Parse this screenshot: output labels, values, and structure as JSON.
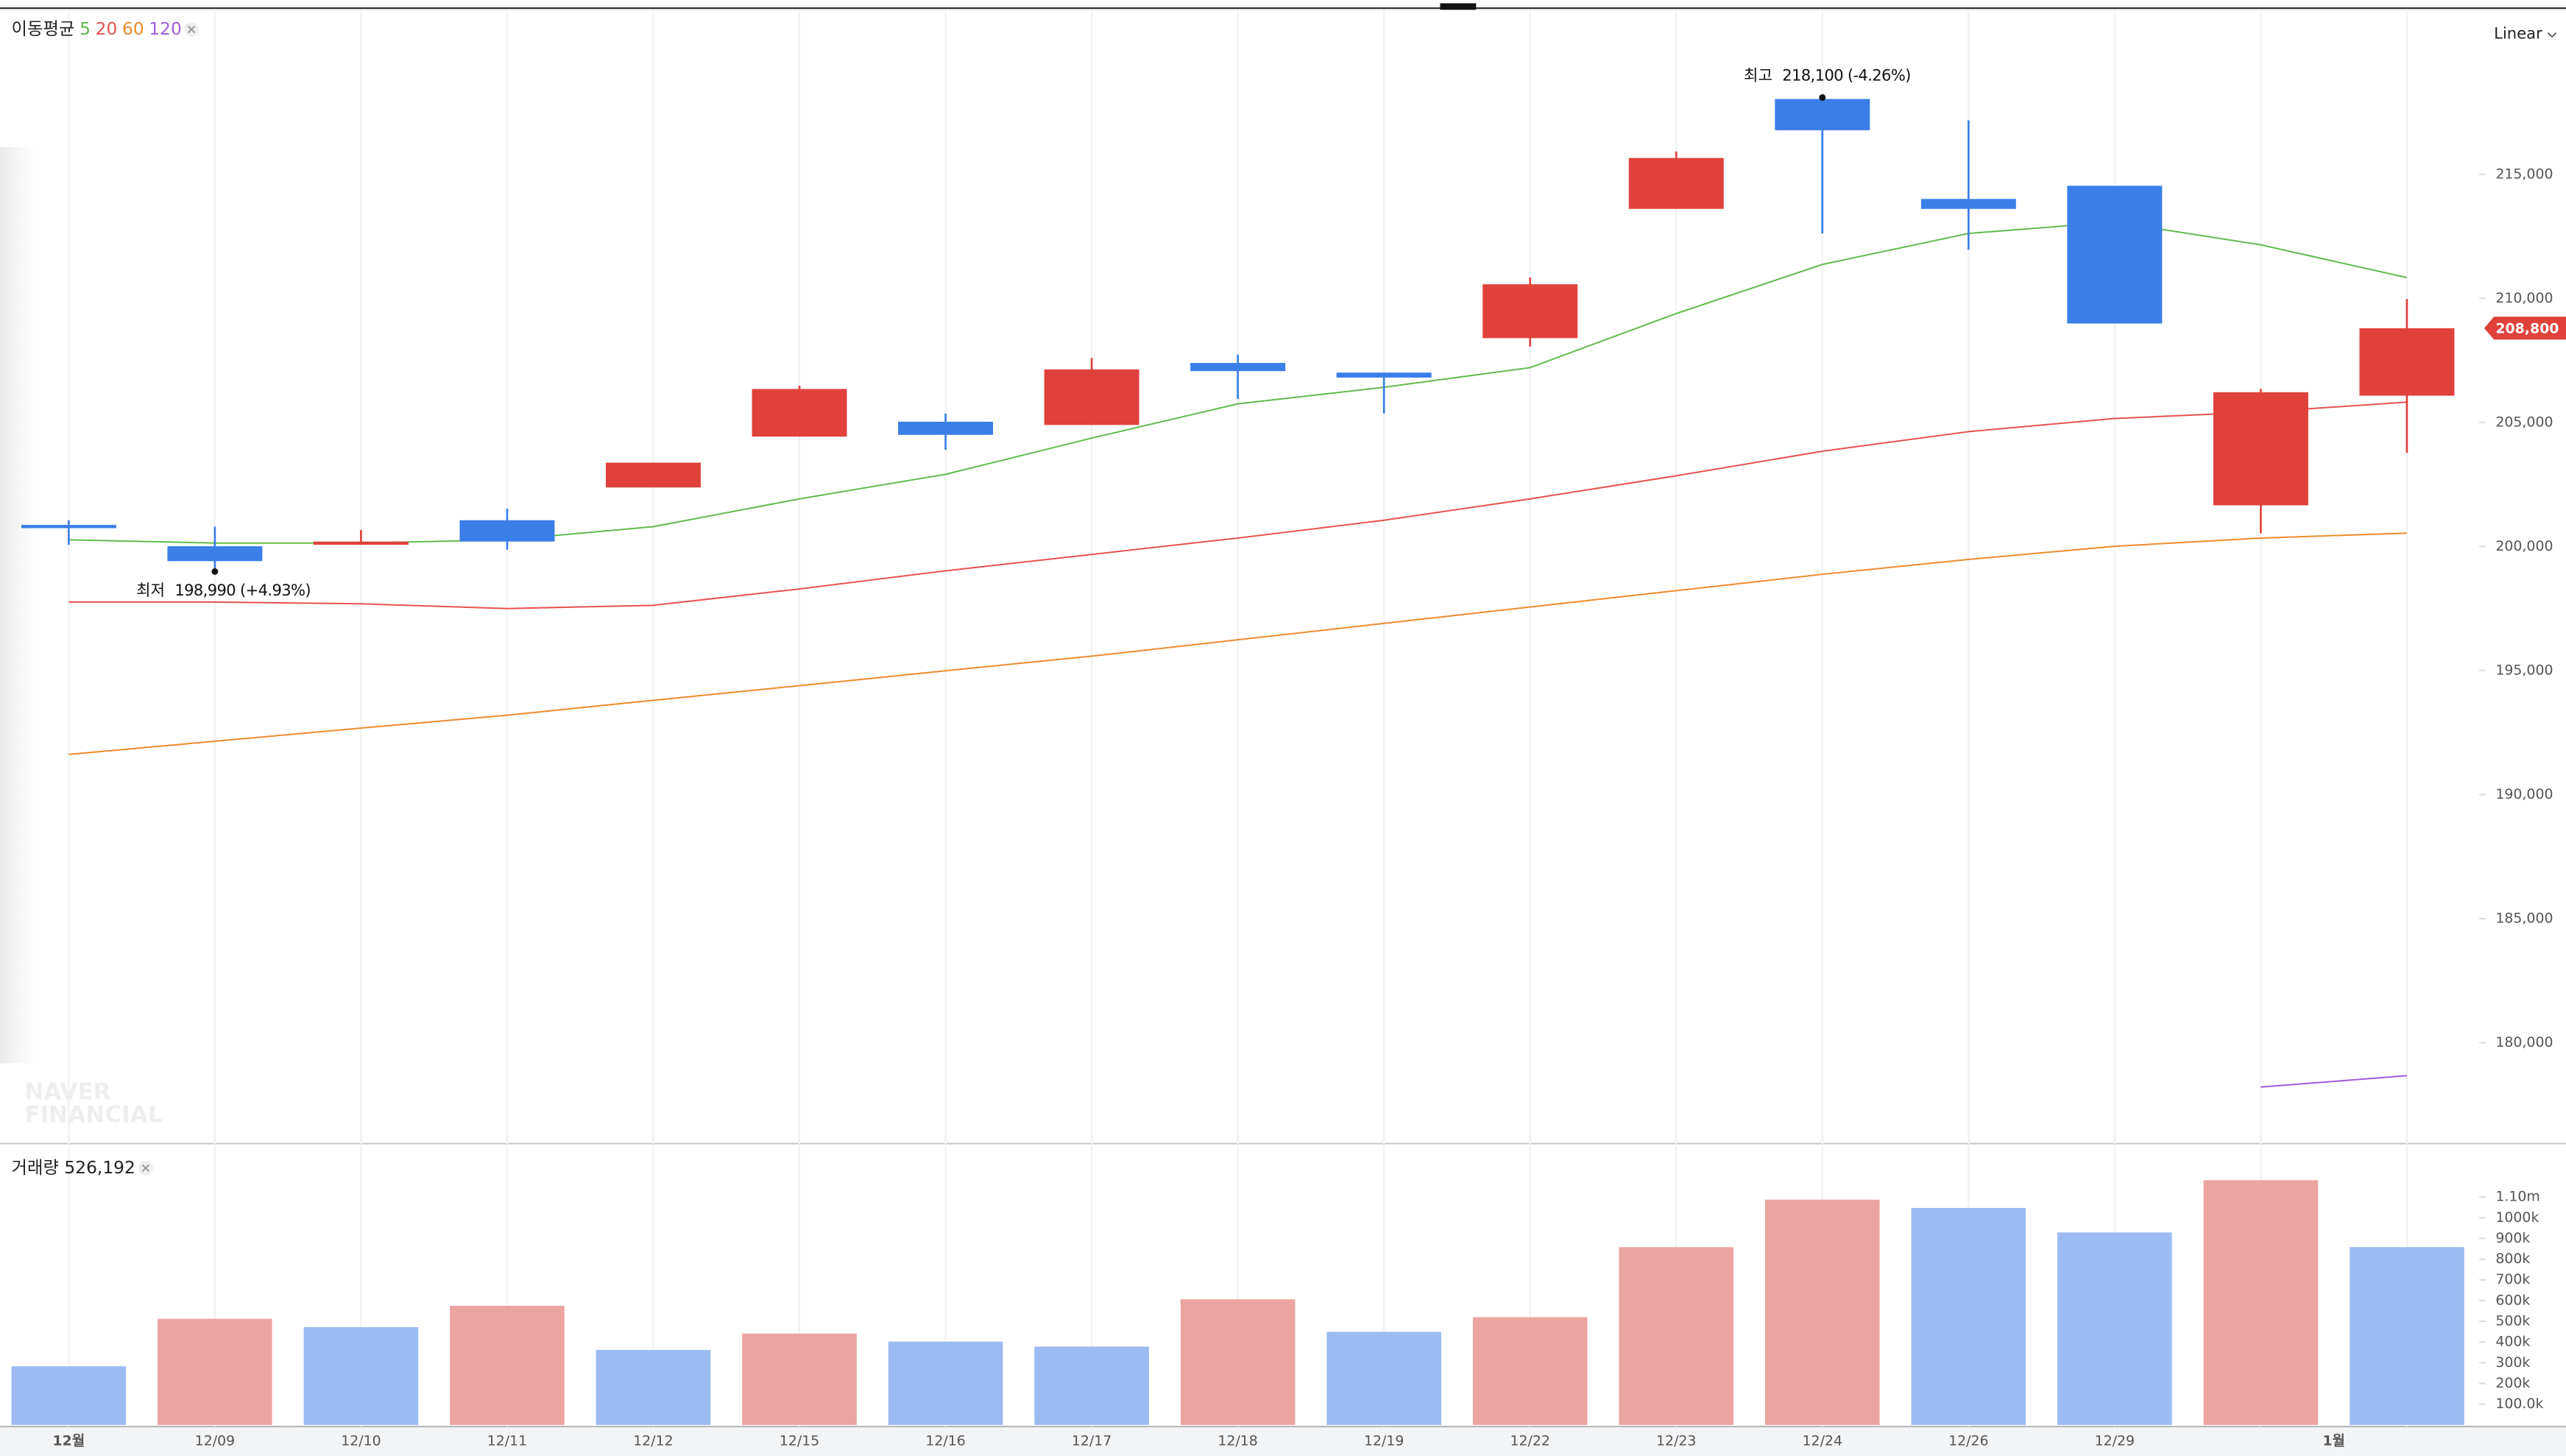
{
  "chart_data": [
    {
      "type": "candlestick",
      "legend_title": "이동평균",
      "scale_label": "Linear",
      "watermark": [
        "NAVER",
        "FINANCIAL"
      ],
      "categories": [
        "12월",
        "12/09",
        "12/10",
        "12/11",
        "12/12",
        "12/15",
        "12/16",
        "12/17",
        "12/18",
        "12/19",
        "12/22",
        "12/23",
        "12/24",
        "12/26",
        "12/29",
        null,
        null
      ],
      "month_label": "1월",
      "open": [
        200870,
        200010,
        200070,
        201060,
        202380,
        204430,
        205030,
        204900,
        207400,
        207010,
        208400,
        213610,
        218040,
        214010,
        214540,
        201660,
        206080
      ],
      "high": [
        201060,
        200800,
        200670,
        201530,
        203380,
        206480,
        205360,
        207600,
        207730,
        207010,
        210840,
        215920,
        218100,
        217180,
        214540,
        206350,
        209980
      ],
      "low": [
        200070,
        198990,
        200070,
        199870,
        202380,
        204430,
        203900,
        204900,
        205950,
        205360,
        208060,
        213610,
        212620,
        211960,
        208990,
        200530,
        203770
      ],
      "close": [
        200740,
        199410,
        200200,
        200200,
        203380,
        206350,
        204500,
        207140,
        207070,
        206810,
        210570,
        215660,
        216780,
        213610,
        208990,
        206220,
        208800
      ],
      "up_color": "#e0413b",
      "down_color": "#3a7ee8",
      "moving_averages": [
        {
          "name": "5",
          "color": "#62bb4e",
          "values": [
            200270,
            200140,
            200140,
            200270,
            200800,
            201920,
            202910,
            204370,
            205750,
            206420,
            207210,
            209390,
            211370,
            212620,
            213080,
            212160,
            210840
          ]
        },
        {
          "name": "20",
          "color": "#e65252",
          "values": [
            197760,
            197760,
            197690,
            197500,
            197630,
            198290,
            199020,
            199680,
            200340,
            201060,
            201920,
            202850,
            203840,
            204630,
            205160,
            205420,
            205820
          ]
        },
        {
          "name": "60",
          "color": "#f08a2c",
          "values": [
            191620,
            192150,
            192680,
            193200,
            193800,
            194390,
            194990,
            195580,
            196240,
            196900,
            197560,
            198220,
            198880,
            199480,
            200010,
            200340,
            200540
          ]
        },
        {
          "name": "120",
          "color": "#a05be0",
          "values": [
            null,
            null,
            null,
            null,
            null,
            null,
            null,
            null,
            null,
            null,
            null,
            null,
            null,
            null,
            null,
            178210,
            178670
          ]
        }
      ],
      "annotations": [
        {
          "label": "최고",
          "text": "218,100 (-4.26%)",
          "value": 218100,
          "kind": "high"
        },
        {
          "label": "최저",
          "text": "198,990 (+4.93%)",
          "value": 198990,
          "kind": "low"
        }
      ],
      "last_price": {
        "value": 208800,
        "label": "208,800"
      },
      "ylim": [
        176000,
        221700
      ],
      "yticks": [
        {
          "value": 180000,
          "label": "180,000"
        },
        {
          "value": 185000,
          "label": "185,000"
        },
        {
          "value": 190000,
          "label": "190,000"
        },
        {
          "value": 195000,
          "label": "195,000"
        },
        {
          "value": 200000,
          "label": "200,000"
        },
        {
          "value": 205000,
          "label": "205,000"
        },
        {
          "value": 210000,
          "label": "210,000"
        },
        {
          "value": 215000,
          "label": "215,000"
        }
      ],
      "x_grid": true
    },
    {
      "type": "bar",
      "title": "거래량",
      "title_value": "526,192",
      "values": [
        283000,
        512000,
        472000,
        575000,
        362000,
        441000,
        402000,
        378000,
        606000,
        449000,
        520000,
        858000,
        1087000,
        1047000,
        929000,
        1181000,
        858000
      ],
      "colors": [
        "#9cbbf2",
        "#eca4a1",
        "#9cbbf2",
        "#eca4a1",
        "#9cbbf2",
        "#eca4a1",
        "#9cbbf2",
        "#9cbbf2",
        "#eca4a1",
        "#9cbbf2",
        "#eca4a1",
        "#eca4a1",
        "#eca4a1",
        "#9cbbf2",
        "#9cbbf2",
        "#eca4a1",
        "#9cbbf2"
      ],
      "ylim": [
        0,
        1350000
      ],
      "yticks": [
        {
          "value": 100000,
          "label": "100.0k"
        },
        {
          "value": 200000,
          "label": "200k"
        },
        {
          "value": 300000,
          "label": "300k"
        },
        {
          "value": 400000,
          "label": "400k"
        },
        {
          "value": 500000,
          "label": "500k"
        },
        {
          "value": 600000,
          "label": "600k"
        },
        {
          "value": 700000,
          "label": "700k"
        },
        {
          "value": 800000,
          "label": "800k"
        },
        {
          "value": 900000,
          "label": "900k"
        },
        {
          "value": 1000000,
          "label": "1000k"
        },
        {
          "value": 1100000,
          "label": "1.10m"
        }
      ]
    }
  ]
}
